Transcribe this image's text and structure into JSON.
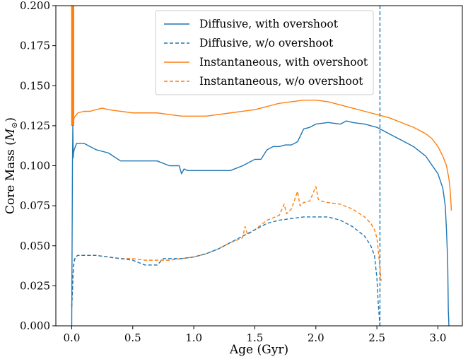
{
  "chart_data": {
    "type": "line",
    "title": "",
    "xlabel": "Age (Gyr)",
    "ylabel": "Core Mass (M⊙)",
    "xlim": [
      -0.13,
      3.2
    ],
    "ylim": [
      0.0,
      0.2
    ],
    "xticks": [
      0.0,
      0.5,
      1.0,
      1.5,
      2.0,
      2.5,
      3.0
    ],
    "yticks": [
      0.0,
      0.025,
      0.05,
      0.075,
      0.1,
      0.125,
      0.15,
      0.175,
      0.2
    ],
    "xtick_labels": [
      "0.0",
      "0.5",
      "1.0",
      "1.5",
      "2.0",
      "2.5",
      "3.0"
    ],
    "ytick_labels": [
      "0.000",
      "0.025",
      "0.050",
      "0.075",
      "0.100",
      "0.125",
      "0.150",
      "0.175",
      "0.200"
    ],
    "grid": false,
    "legend_position": "top-right",
    "series": [
      {
        "name": "Diffusive, with overshoot",
        "color": "#1f77b4",
        "dash": "solid",
        "width": 1.4,
        "x": [
          0.0,
          0.003,
          0.006,
          0.009,
          0.012,
          0.015,
          0.02,
          0.03,
          0.04,
          0.06,
          0.08,
          0.1,
          0.2,
          0.3,
          0.4,
          0.5,
          0.7,
          0.8,
          0.88,
          0.9,
          0.92,
          0.95,
          1.0,
          1.2,
          1.3,
          1.4,
          1.5,
          1.55,
          1.6,
          1.65,
          1.7,
          1.75,
          1.8,
          1.85,
          1.9,
          1.95,
          2.0,
          2.1,
          2.2,
          2.25,
          2.3,
          2.4,
          2.5,
          2.55,
          2.6,
          2.7,
          2.8,
          2.9,
          3.0,
          3.04,
          3.06,
          3.07,
          3.08,
          3.085,
          3.09
        ],
        "y": [
          0.0,
          0.05,
          0.1,
          0.125,
          0.105,
          0.108,
          0.11,
          0.112,
          0.114,
          0.114,
          0.114,
          0.114,
          0.11,
          0.108,
          0.103,
          0.103,
          0.103,
          0.1,
          0.1,
          0.095,
          0.098,
          0.097,
          0.097,
          0.097,
          0.097,
          0.1,
          0.104,
          0.104,
          0.11,
          0.112,
          0.112,
          0.113,
          0.113,
          0.115,
          0.123,
          0.124,
          0.126,
          0.127,
          0.126,
          0.128,
          0.127,
          0.126,
          0.124,
          0.122,
          0.12,
          0.116,
          0.112,
          0.106,
          0.095,
          0.086,
          0.075,
          0.06,
          0.04,
          0.01,
          0.0
        ]
      },
      {
        "name": "Diffusive, w/o overshoot",
        "color": "#1f77b4",
        "dash": "dashed",
        "width": 1.4,
        "x": [
          0.0,
          0.005,
          0.01,
          0.015,
          0.02,
          0.03,
          0.05,
          0.1,
          0.2,
          0.3,
          0.4,
          0.5,
          0.6,
          0.7,
          0.75,
          0.8,
          0.9,
          1.0,
          1.1,
          1.2,
          1.3,
          1.4,
          1.5,
          1.6,
          1.7,
          1.8,
          1.9,
          2.0,
          2.1,
          2.2,
          2.3,
          2.4,
          2.45,
          2.48,
          2.5,
          2.51,
          2.52,
          2.525
        ],
        "y": [
          0.012,
          0.02,
          0.03,
          0.037,
          0.04,
          0.043,
          0.044,
          0.044,
          0.044,
          0.043,
          0.042,
          0.041,
          0.038,
          0.038,
          0.042,
          0.042,
          0.042,
          0.043,
          0.045,
          0.048,
          0.052,
          0.056,
          0.06,
          0.064,
          0.066,
          0.067,
          0.068,
          0.068,
          0.068,
          0.066,
          0.062,
          0.056,
          0.05,
          0.044,
          0.03,
          0.015,
          0.005,
          0.0
        ]
      },
      {
        "name": "Instantaneous, with overshoot",
        "color": "#ff7f0e",
        "dash": "solid",
        "width": 1.4,
        "x": [
          0.0,
          0.003,
          0.006,
          0.01,
          0.02,
          0.05,
          0.1,
          0.15,
          0.2,
          0.25,
          0.3,
          0.4,
          0.5,
          0.6,
          0.7,
          0.8,
          0.9,
          1.0,
          1.1,
          1.2,
          1.3,
          1.4,
          1.5,
          1.6,
          1.7,
          1.8,
          1.9,
          2.0,
          2.1,
          2.2,
          2.3,
          2.4,
          2.5,
          2.6,
          2.7,
          2.8,
          2.9,
          2.95,
          3.0,
          3.04,
          3.07,
          3.09,
          3.1,
          3.105,
          3.11
        ],
        "y": [
          0.2,
          0.16,
          0.14,
          0.125,
          0.13,
          0.133,
          0.134,
          0.134,
          0.135,
          0.136,
          0.135,
          0.134,
          0.133,
          0.133,
          0.133,
          0.132,
          0.131,
          0.131,
          0.131,
          0.132,
          0.133,
          0.134,
          0.135,
          0.137,
          0.139,
          0.14,
          0.141,
          0.141,
          0.14,
          0.138,
          0.136,
          0.134,
          0.132,
          0.13,
          0.127,
          0.124,
          0.12,
          0.117,
          0.112,
          0.106,
          0.1,
          0.092,
          0.085,
          0.079,
          0.072
        ]
      },
      {
        "name": "Instantaneous, w/o overshoot",
        "color": "#ff7f0e",
        "dash": "dashed",
        "width": 1.4,
        "x": [
          0.0,
          0.005,
          0.01,
          0.015,
          0.02,
          0.03,
          0.05,
          0.1,
          0.2,
          0.3,
          0.4,
          0.5,
          0.6,
          0.7,
          0.8,
          0.9,
          1.0,
          1.1,
          1.2,
          1.3,
          1.4,
          1.42,
          1.44,
          1.5,
          1.6,
          1.7,
          1.74,
          1.76,
          1.8,
          1.85,
          1.87,
          1.9,
          1.95,
          2.0,
          2.02,
          2.04,
          2.1,
          2.2,
          2.3,
          2.4,
          2.45,
          2.48,
          2.5,
          2.51,
          2.52,
          2.53,
          2.535
        ],
        "y": [
          0.012,
          0.02,
          0.03,
          0.038,
          0.041,
          0.043,
          0.044,
          0.044,
          0.044,
          0.043,
          0.042,
          0.042,
          0.041,
          0.041,
          0.041,
          0.042,
          0.043,
          0.045,
          0.048,
          0.052,
          0.055,
          0.062,
          0.057,
          0.06,
          0.066,
          0.069,
          0.076,
          0.07,
          0.073,
          0.084,
          0.075,
          0.077,
          0.078,
          0.087,
          0.079,
          0.078,
          0.077,
          0.076,
          0.073,
          0.068,
          0.064,
          0.06,
          0.055,
          0.048,
          0.04,
          0.032,
          0.028
        ]
      }
    ]
  },
  "annotations": {
    "vline": {
      "x": 2.525,
      "color": "#1f77b4",
      "dash": "dashed"
    }
  }
}
